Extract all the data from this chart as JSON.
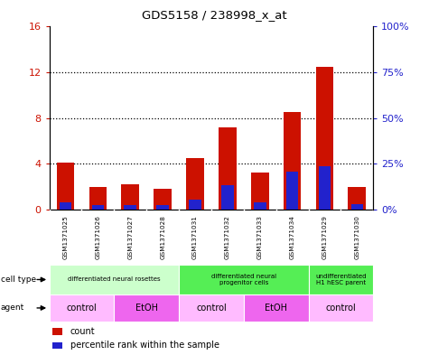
{
  "title": "GDS5158 / 238998_x_at",
  "samples": [
    "GSM1371025",
    "GSM1371026",
    "GSM1371027",
    "GSM1371028",
    "GSM1371031",
    "GSM1371032",
    "GSM1371033",
    "GSM1371034",
    "GSM1371029",
    "GSM1371030"
  ],
  "counts": [
    4.1,
    2.0,
    2.2,
    1.8,
    4.5,
    7.2,
    3.2,
    8.5,
    12.5,
    2.0
  ],
  "percentile_ranks": [
    4.0,
    2.2,
    2.5,
    2.4,
    5.6,
    13.5,
    4.1,
    20.5,
    23.5,
    3.1
  ],
  "bar_color": "#cc1100",
  "blue_color": "#2222cc",
  "ylim_left": [
    0,
    16
  ],
  "ylim_right": [
    0,
    100
  ],
  "cell_type_groups": [
    {
      "label": "differentiated neural rosettes",
      "start": 0,
      "end": 4,
      "color": "#ccffcc"
    },
    {
      "label": "differentiated neural\nprogenitor cells",
      "start": 4,
      "end": 8,
      "color": "#55ee55"
    },
    {
      "label": "undifferentiated\nH1 hESC parent",
      "start": 8,
      "end": 10,
      "color": "#55ee55"
    }
  ],
  "agent_groups": [
    {
      "label": "control",
      "start": 0,
      "end": 2,
      "color": "#ffbbff"
    },
    {
      "label": "EtOH",
      "start": 2,
      "end": 4,
      "color": "#ee66ee"
    },
    {
      "label": "control",
      "start": 4,
      "end": 6,
      "color": "#ffbbff"
    },
    {
      "label": "EtOH",
      "start": 6,
      "end": 8,
      "color": "#ee66ee"
    },
    {
      "label": "control",
      "start": 8,
      "end": 10,
      "color": "#ffbbff"
    }
  ],
  "bg_color": "#ffffff",
  "sample_bg_color": "#bbbbbb",
  "left_axis_color": "#cc1100",
  "right_axis_color": "#2222cc",
  "bar_width": 0.55,
  "blue_bar_width": 0.38
}
